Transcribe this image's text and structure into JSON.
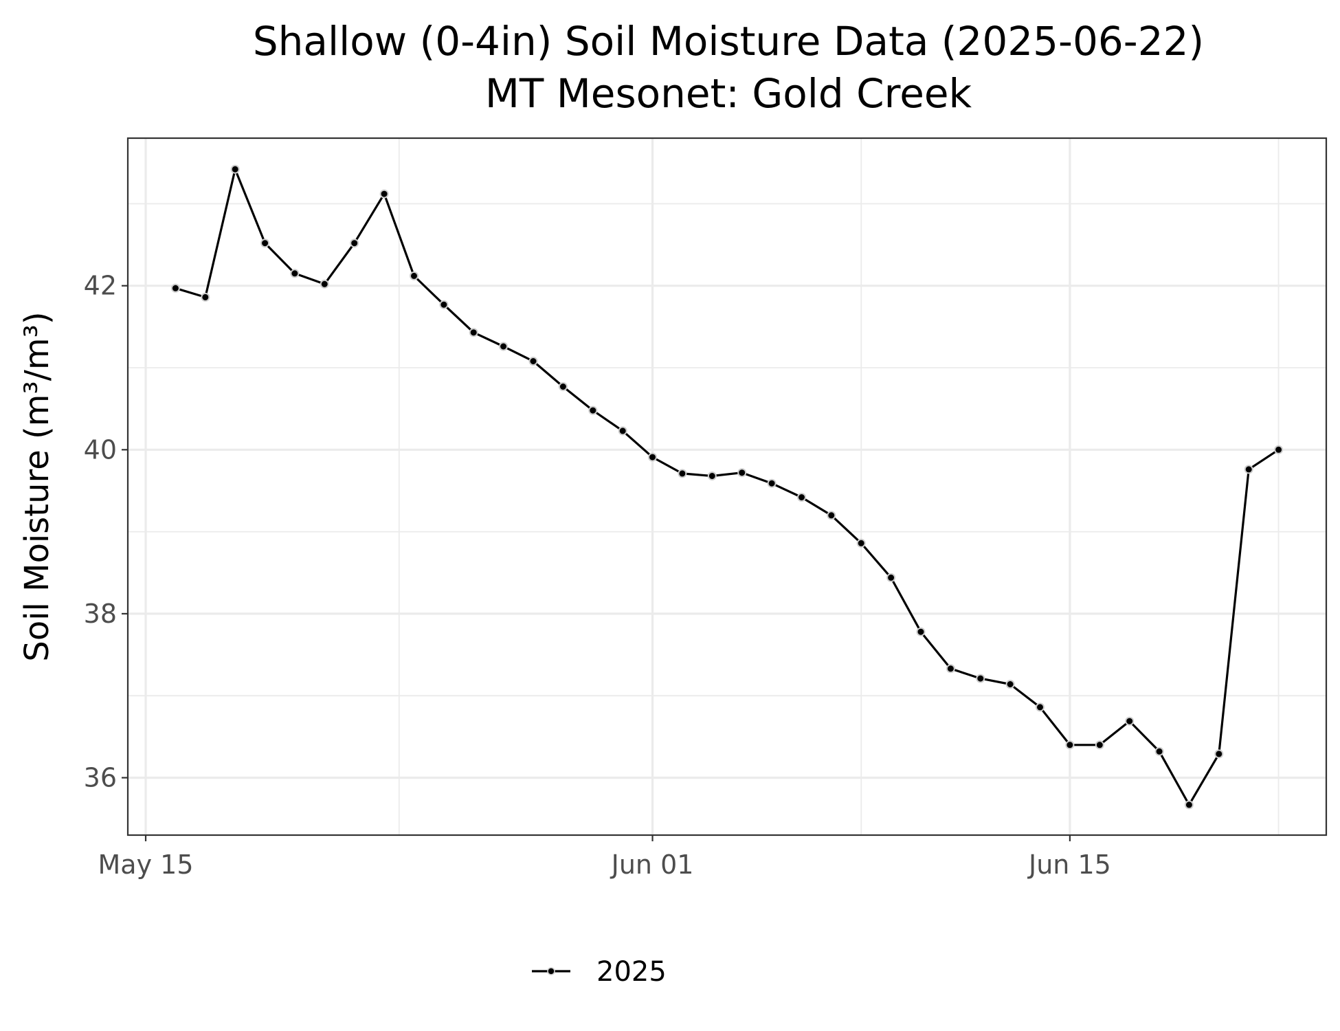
{
  "chart_data": {
    "type": "line",
    "title": "Shallow (0-4in) Soil Moisture Data (2025-06-22)",
    "subtitle": "MT Mesonet: Gold Creek",
    "xlabel": "",
    "ylabel": "Soil Moisture (m³/m³)",
    "x_ticks": [
      {
        "date": "2025-05-15",
        "label": "May 15"
      },
      {
        "date": "2025-06-01",
        "label": "Jun 01"
      },
      {
        "date": "2025-06-15",
        "label": "Jun 15"
      }
    ],
    "y_ticks": [
      36,
      38,
      40,
      42
    ],
    "xlim": [
      "2025-05-14",
      "2025-06-23"
    ],
    "ylim": [
      35.3,
      43.8
    ],
    "grid": true,
    "legend_position": "bottom",
    "series": [
      {
        "name": "2025",
        "color": "#000000",
        "marker_edge": "#cccccc",
        "x": [
          "2025-05-16",
          "2025-05-17",
          "2025-05-18",
          "2025-05-19",
          "2025-05-20",
          "2025-05-21",
          "2025-05-22",
          "2025-05-23",
          "2025-05-24",
          "2025-05-25",
          "2025-05-26",
          "2025-05-27",
          "2025-05-28",
          "2025-05-29",
          "2025-05-30",
          "2025-05-31",
          "2025-06-01",
          "2025-06-02",
          "2025-06-03",
          "2025-06-04",
          "2025-06-05",
          "2025-06-06",
          "2025-06-07",
          "2025-06-08",
          "2025-06-09",
          "2025-06-10",
          "2025-06-11",
          "2025-06-12",
          "2025-06-13",
          "2025-06-14",
          "2025-06-15",
          "2025-06-16",
          "2025-06-17",
          "2025-06-18",
          "2025-06-19",
          "2025-06-20",
          "2025-06-21",
          "2025-06-22"
        ],
        "values": [
          41.97,
          41.86,
          43.42,
          42.52,
          42.15,
          42.02,
          42.52,
          43.12,
          42.12,
          41.77,
          41.43,
          41.26,
          41.08,
          40.77,
          40.48,
          40.23,
          39.91,
          39.71,
          39.68,
          39.72,
          39.59,
          39.42,
          39.2,
          38.86,
          38.44,
          37.78,
          37.33,
          37.21,
          37.14,
          36.86,
          36.4,
          36.4,
          36.69,
          36.32,
          35.67,
          36.29,
          39.76,
          40.0
        ]
      }
    ]
  }
}
